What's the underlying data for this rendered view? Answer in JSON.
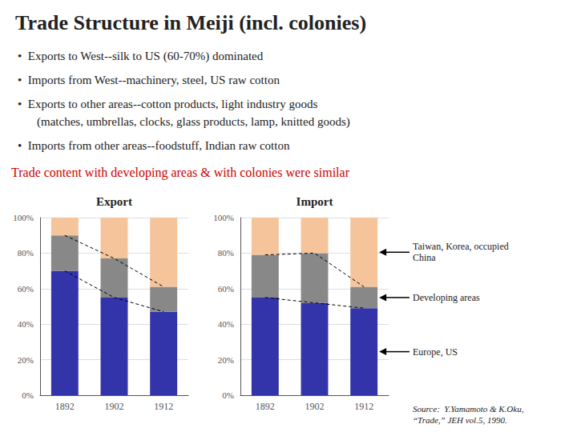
{
  "title": "Trade Structure in Meiji (incl. colonies)",
  "annotations": [
    "•  Exports to West--silk to US (60-70%) dominated",
    "•  Imports from West--machinery, steel, US raw cotton",
    "•  Exports to other areas--cotton products, light industry goods",
    "(matches, umbrellas, clocks, glass products, lamp, knitted goods)",
    "•  Imports from other areas--foodstuff, Indian raw cotton",
    {
      "text": "Trade content with developing areas & with colonies were similar",
      "color": "#cc0000"
    },
    "Source:  Y.Yamamoto & K.Oku,\n“Trade,” JEH vol.5, 1990."
  ],
  "chart_data": [
    {
      "type": "bar",
      "stacked": true,
      "title": "Export",
      "categories": [
        "1892",
        "1902",
        "1912"
      ],
      "series": [
        {
          "color": "#3333aa",
          "values": [
            0.7,
            0.55,
            0.47
          ]
        },
        {
          "color": "#888888",
          "values": [
            0.2,
            0.22,
            0.14
          ]
        },
        {
          "color": "#f5c49a",
          "values": [
            0.1,
            0.23,
            0.39
          ]
        }
      ],
      "ylim": [
        0,
        1.0
      ],
      "yticks": [
        {
          "value": 0,
          "label": "0%"
        },
        {
          "value": 0.2,
          "label": "20%"
        },
        {
          "value": 0.4,
          "label": "40%"
        },
        {
          "value": 0.6,
          "label": "60%"
        },
        {
          "value": 0.8,
          "label": "80%"
        },
        {
          "value": 1.0,
          "label": "100%"
        }
      ],
      "grid": true
    },
    {
      "type": "bar",
      "stacked": true,
      "title": "Import",
      "categories": [
        "1892",
        "1902",
        "1912"
      ],
      "series": [
        {
          "color": "#3333aa",
          "values": [
            0.55,
            0.52,
            0.49
          ]
        },
        {
          "color": "#888888",
          "values": [
            0.24,
            0.28,
            0.12
          ]
        },
        {
          "color": "#f5c49a",
          "values": [
            0.21,
            0.2,
            0.39
          ]
        }
      ],
      "ylim": [
        0,
        1.0
      ],
      "yticks": [
        {
          "value": 0,
          "label": "0%"
        },
        {
          "value": 0.2,
          "label": "20%"
        },
        {
          "value": 0.4,
          "label": "40%"
        },
        {
          "value": 0.6,
          "label": "60%"
        },
        {
          "value": 0.8,
          "label": "80%"
        },
        {
          "value": 1.0,
          "label": "100%"
        }
      ],
      "grid": true,
      "annotations": [
        "Taiwan, Korea, occupied\nChina",
        "Developing areas",
        "Europe, US"
      ]
    }
  ]
}
